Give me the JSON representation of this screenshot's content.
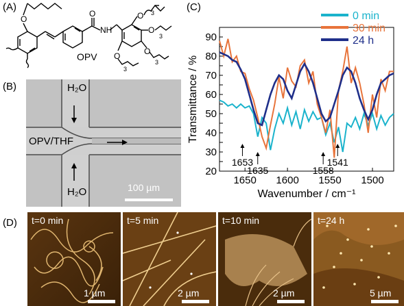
{
  "panels": {
    "a_label": "(A)",
    "b_label": "(B)",
    "c_label": "(C)",
    "d_label": "(D)"
  },
  "structure": {
    "label_O": "O",
    "label_NH": "NH",
    "label_OPV": "OPV",
    "subscript_3": "3"
  },
  "microfluidic": {
    "top_inlet": "H₂O",
    "bottom_inlet": "H₂O",
    "main_inlet": "OPV/THF",
    "scale_label": "100 µm"
  },
  "chart_data": {
    "type": "line",
    "xlabel": "Wavenumber / cm⁻¹",
    "ylabel": "Transmittance / %",
    "xlim": [
      1680,
      1475
    ],
    "ylim": [
      20,
      95
    ],
    "x_ticks": [
      1650,
      1600,
      1550,
      1500
    ],
    "y_ticks": [
      20,
      25,
      30,
      35,
      40,
      45,
      50,
      55,
      60,
      65,
      70,
      75,
      80,
      85,
      90
    ],
    "legend_position": "top-right",
    "annotations": [
      {
        "label": "1635",
        "x": 1635
      },
      {
        "label": "1653",
        "x": 1653
      },
      {
        "label": "1558",
        "x": 1558
      },
      {
        "label": "1541",
        "x": 1541
      }
    ],
    "series": [
      {
        "name": "0 min",
        "color": "#1ab3cc",
        "x": [
          1680,
          1675,
          1670,
          1665,
          1660,
          1655,
          1650,
          1645,
          1640,
          1635,
          1630,
          1625,
          1620,
          1615,
          1610,
          1605,
          1600,
          1595,
          1590,
          1585,
          1580,
          1575,
          1570,
          1565,
          1560,
          1555,
          1550,
          1545,
          1540,
          1535,
          1530,
          1525,
          1520,
          1515,
          1510,
          1505,
          1500,
          1495,
          1490,
          1485,
          1480,
          1475
        ],
        "y": [
          57,
          56,
          54,
          55,
          53,
          55,
          53,
          54,
          50,
          38,
          48,
          45,
          31,
          42,
          50,
          45,
          53,
          44,
          51,
          42,
          52,
          46,
          51,
          47,
          48,
          39,
          45,
          35,
          43,
          30,
          45,
          43,
          48,
          42,
          50,
          44,
          50,
          42,
          49,
          44,
          48,
          50
        ]
      },
      {
        "name": "30 min",
        "color": "#e8743b",
        "x": [
          1680,
          1675,
          1670,
          1665,
          1660,
          1655,
          1650,
          1645,
          1640,
          1635,
          1630,
          1625,
          1620,
          1615,
          1610,
          1605,
          1600,
          1595,
          1590,
          1585,
          1580,
          1575,
          1570,
          1565,
          1560,
          1555,
          1550,
          1545,
          1540,
          1535,
          1530,
          1525,
          1520,
          1515,
          1510,
          1505,
          1500,
          1495,
          1490,
          1485,
          1480,
          1475
        ],
        "y": [
          88,
          80,
          89,
          77,
          80,
          72,
          71,
          63,
          57,
          48,
          38,
          32,
          44,
          55,
          69,
          58,
          74,
          67,
          64,
          75,
          78,
          66,
          72,
          55,
          48,
          40,
          52,
          27,
          62,
          72,
          85,
          66,
          74,
          66,
          55,
          40,
          60,
          48,
          68,
          62,
          72,
          72
        ]
      },
      {
        "name": "24 h",
        "color": "#1f2f8a",
        "x": [
          1680,
          1675,
          1670,
          1665,
          1660,
          1655,
          1650,
          1645,
          1640,
          1635,
          1630,
          1625,
          1620,
          1615,
          1610,
          1605,
          1600,
          1595,
          1590,
          1585,
          1580,
          1575,
          1570,
          1565,
          1560,
          1555,
          1550,
          1545,
          1540,
          1535,
          1530,
          1525,
          1520,
          1515,
          1510,
          1505,
          1500,
          1495,
          1490,
          1485,
          1480,
          1475
        ],
        "y": [
          82,
          81,
          80,
          78,
          77,
          73,
          68,
          60,
          52,
          45,
          44,
          52,
          60,
          66,
          70,
          68,
          62,
          58,
          65,
          72,
          76,
          72,
          66,
          58,
          50,
          46,
          48,
          55,
          62,
          70,
          74,
          72,
          66,
          58,
          52,
          47,
          52,
          60,
          66,
          68,
          70,
          71
        ]
      }
    ]
  },
  "afm": [
    {
      "time": "t=0 min",
      "scale": "1 µm"
    },
    {
      "time": "t=5 min",
      "scale": "2 µm"
    },
    {
      "time": "t=10 min",
      "scale": "2 µm"
    },
    {
      "time": "t=24 h",
      "scale": "5 µm"
    }
  ]
}
